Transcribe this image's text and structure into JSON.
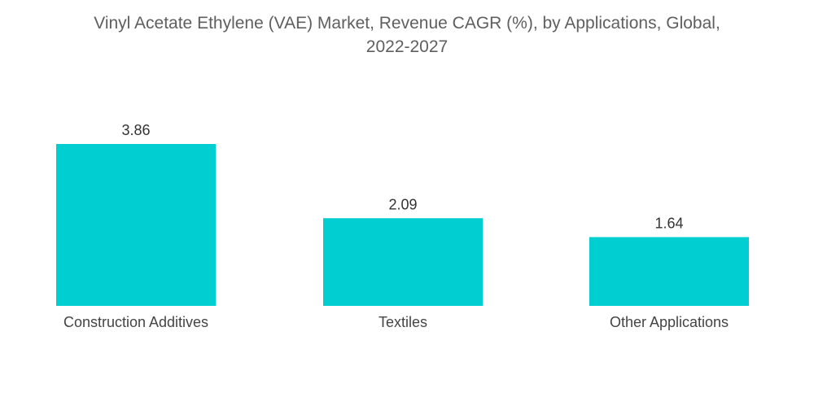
{
  "chart_data": {
    "type": "bar",
    "title_line1": "Vinyl Acetate Ethylene (VAE) Market, Revenue CAGR (%), by Applications, Global,",
    "title_line2": "2022-2027",
    "categories": [
      "Construction Additives",
      "Textiles",
      "Other Applications"
    ],
    "values": [
      3.86,
      2.09,
      1.64
    ],
    "value_labels": [
      "3.86",
      "2.09",
      "1.64"
    ],
    "xlabel": "",
    "ylabel": "",
    "ylim": [
      0,
      3.86
    ],
    "grid": false,
    "legend": "none",
    "bar_color": "#00CED1"
  }
}
